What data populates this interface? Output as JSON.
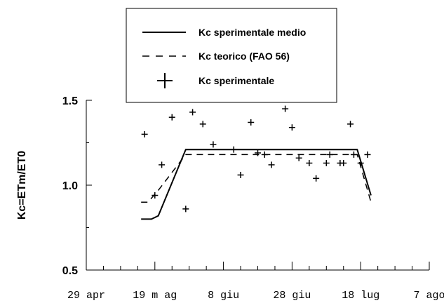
{
  "chart_data": {
    "type": "line",
    "ylabel": "Kc=ETm/ET0",
    "xlabel": "",
    "ylim": [
      0.5,
      1.5
    ],
    "yticks": [
      "0.5",
      "1.0",
      "1.5"
    ],
    "xlim_days": [
      -10,
      100
    ],
    "xticks": [
      {
        "label": "29 apr",
        "day": 0
      },
      {
        "label": "19 m ag",
        "day": 20
      },
      {
        "label": "8 giu",
        "day": 40
      },
      {
        "label": "28 giu",
        "day": 60
      },
      {
        "label": "18 lug",
        "day": 80
      },
      {
        "label": "7 ago",
        "day": 100
      }
    ],
    "legend": {
      "placement": "top",
      "entries": [
        {
          "label": "Kc sperimentale medio",
          "style": "solid"
        },
        {
          "label": "Kc teorico (FAO 56)",
          "style": "dashed"
        },
        {
          "label": "Kc sperimentale",
          "style": "marker-plus"
        }
      ]
    },
    "series": [
      {
        "name": "Kc sperimentale medio",
        "style": "solid",
        "x_days": [
          16,
          19,
          21,
          29,
          79,
          83
        ],
        "y": [
          0.8,
          0.8,
          0.82,
          1.21,
          1.21,
          0.94
        ]
      },
      {
        "name": "Kc teorico (FAO 56)",
        "style": "dashed",
        "x_days": [
          16,
          18,
          21,
          29,
          79,
          83
        ],
        "y": [
          0.9,
          0.9,
          0.97,
          1.18,
          1.18,
          0.9
        ]
      },
      {
        "name": "Kc sperimentale",
        "style": "marker-plus",
        "x_days": [
          17,
          20,
          22,
          25,
          29,
          31,
          34,
          37,
          43,
          45,
          48,
          50,
          52,
          54,
          58,
          60,
          62,
          65,
          67,
          70,
          71,
          74,
          75,
          77,
          78,
          80,
          82
        ],
        "y": [
          1.3,
          0.94,
          1.12,
          1.4,
          0.86,
          1.43,
          1.36,
          1.24,
          1.21,
          1.06,
          1.37,
          1.19,
          1.18,
          1.12,
          1.45,
          1.34,
          1.16,
          1.13,
          1.04,
          1.13,
          1.18,
          1.13,
          1.13,
          1.36,
          1.18,
          1.13,
          1.18
        ]
      }
    ]
  }
}
